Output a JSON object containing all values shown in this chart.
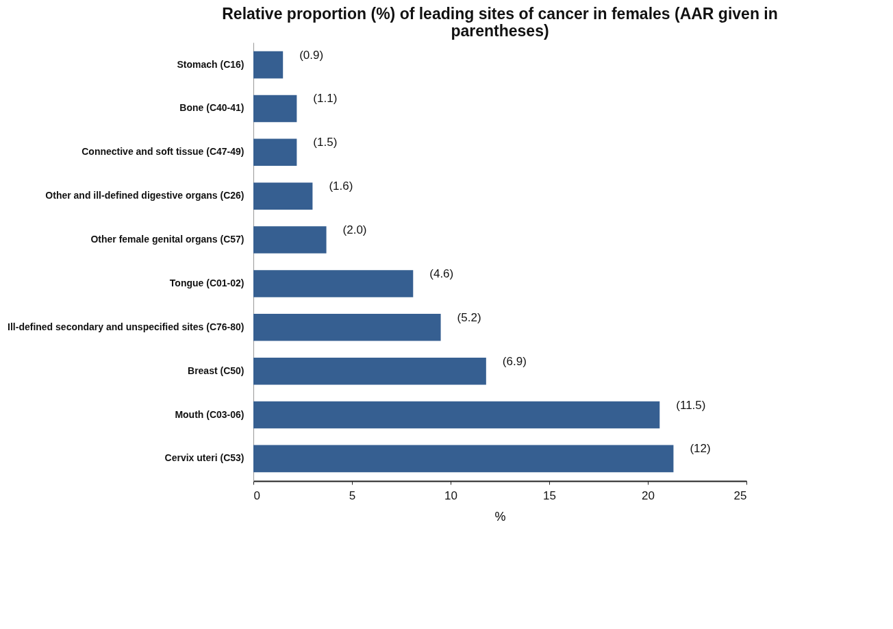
{
  "chart_data": {
    "type": "bar",
    "orientation": "horizontal",
    "title": [
      "Relative proportion (%) of leading sites of cancer in females (AAR given in",
      "parentheses)"
    ],
    "xlabel": "%",
    "categories": [
      "Stomach (C16)",
      "Bone (C40-41)",
      "Connective and soft tissue (C47-49)",
      "Other and ill-defined digestive organs (C26)",
      "Other female genital organs (C57)",
      "Tongue (C01-02)",
      "Ill-defined secondary and unspecified sites (C76-80)",
      "Breast (C50)",
      "Mouth (C03-06)",
      "Cervix uteri (C53)"
    ],
    "values": [
      1.5,
      2.2,
      2.2,
      3.0,
      3.7,
      8.1,
      9.5,
      11.8,
      20.6,
      21.3
    ],
    "color": "#365f91",
    "xlim": [
      0,
      25
    ],
    "xticks": [
      0,
      5,
      10,
      15,
      20,
      25
    ],
    "grid": false,
    "annotations": [
      {
        "text": "(0.9)",
        "x": 1.5,
        "y": "Stomach (C16)"
      },
      {
        "text": "(1.1)",
        "x": 2.2,
        "y": "Bone (C40-41)"
      },
      {
        "text": "(1.5)",
        "x": 2.2,
        "y": "Connective and soft tissue (C47-49)"
      },
      {
        "text": "(1.6)",
        "x": 3.0,
        "y": "Other and ill-defined digestive organs (C26)"
      },
      {
        "text": "(2.0)",
        "x": 3.7,
        "y": "Other female genital organs (C57)"
      },
      {
        "text": "(4.6)",
        "x": 8.1,
        "y": "Tongue (C01-02)"
      },
      {
        "text": "(5.2)",
        "x": 9.5,
        "y": "Ill-defined secondary and unspecified sites (C76-80)"
      },
      {
        "text": "(6.9)",
        "x": 11.8,
        "y": "Breast (C50)"
      },
      {
        "text": "(11.5)",
        "x": 20.6,
        "y": "Mouth (C03-06)"
      },
      {
        "text": "(12)",
        "x": 21.3,
        "y": "Cervix uteri (C53)"
      }
    ]
  }
}
